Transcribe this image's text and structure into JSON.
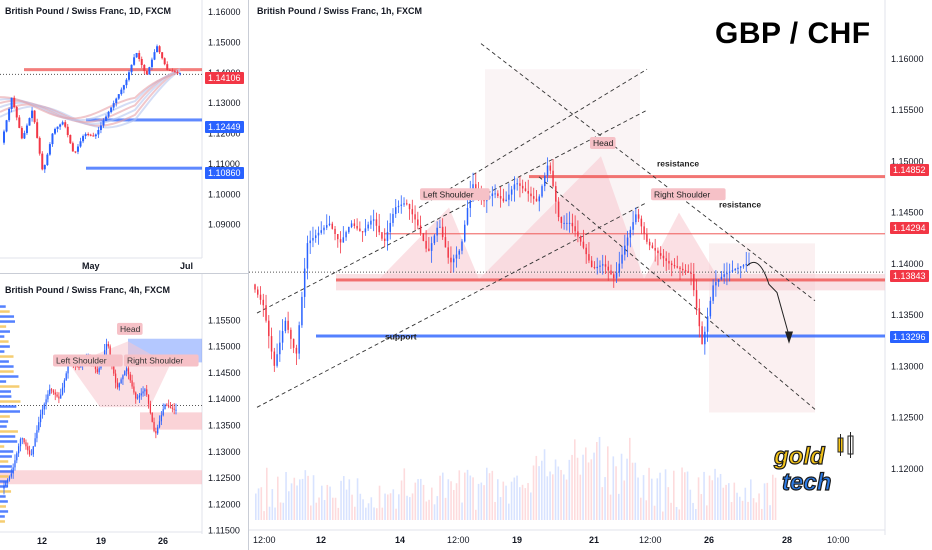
{
  "headline": "GBP / CHF",
  "logo_text": "gold tech",
  "colors": {
    "up": "#2962ff",
    "down": "#f23645",
    "red_line": "#ef5350",
    "blue_line": "#2962ff",
    "pattern_fill": "#f8c7cd",
    "neckline_fill": "#f6c9cd"
  },
  "chart_data": [
    {
      "type": "candlestick",
      "title": "British Pound / Swiss Franc, 1D, FXCM",
      "price_axis": [
        "1.16000",
        "1.15000",
        "1.14000",
        "1.13000",
        "1.12000",
        "1.11000",
        "1.10000",
        "1.09000"
      ],
      "time_axis": [
        "May",
        "Jul"
      ],
      "levels": [
        {
          "value": "1.14106",
          "color": "#f23645"
        },
        {
          "value": "1.12449",
          "color": "#2962ff"
        },
        {
          "value": "1.10860",
          "color": "#2962ff"
        }
      ],
      "ylim": [
        1.08,
        1.164
      ]
    },
    {
      "type": "candlestick",
      "title": "British Pound / Swiss Franc, 4h, FXCM",
      "price_axis": [
        "1.15500",
        "1.15000",
        "1.14500",
        "1.14000",
        "1.13500",
        "1.13000",
        "1.12500",
        "1.12000",
        "1.11500"
      ],
      "time_axis": [
        "12",
        "19",
        "26"
      ],
      "annotations": [
        "Left Shoulder",
        "Head",
        "Right Shoulder"
      ],
      "ylim": [
        1.114,
        1.16
      ]
    },
    {
      "type": "candlestick",
      "title": "British Pound / Swiss Franc, 1h, FXCM",
      "price_axis": [
        "1.16000",
        "1.15500",
        "1.15000",
        "1.14500",
        "1.14000",
        "1.13500",
        "1.13000",
        "1.12500",
        "1.12000"
      ],
      "time_axis": [
        "12:00",
        "12",
        "14",
        "12:00",
        "19",
        "21",
        "12:00",
        "26",
        "28",
        "10:00"
      ],
      "annotations": [
        "Left Shoulder",
        "Head",
        "Right Shoulder",
        "resistance",
        "resistance",
        "support"
      ],
      "levels": [
        {
          "value": "1.14852",
          "color": "#f23645",
          "label": "resistance"
        },
        {
          "value": "1.14294",
          "color": "#f23645",
          "label": "resistance"
        },
        {
          "value": "1.13843",
          "color": "#f23645"
        },
        {
          "value": "1.13296",
          "color": "#2962ff",
          "label": "support"
        }
      ],
      "ylim": [
        1.115,
        1.164
      ]
    }
  ]
}
